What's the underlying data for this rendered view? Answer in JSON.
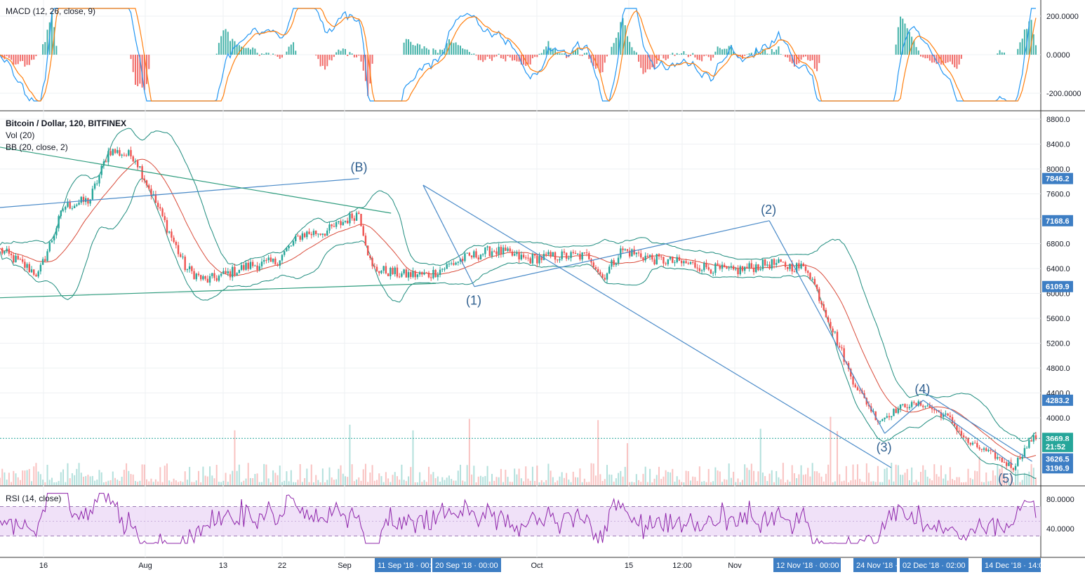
{
  "chart_data": [
    {
      "type": "line",
      "title": "Bitcoin / Dollar, 120, BITFINEX",
      "indicators": [
        "Vol (20)",
        "BB (20, close, 2)"
      ],
      "ylim": [
        3000,
        8900
      ],
      "y_ticks": [
        8800,
        8400,
        8000,
        7600,
        7200,
        6800,
        6400,
        6000,
        5600,
        5200,
        4800,
        4400,
        4000
      ],
      "y_tick_labels": [
        "8800.0",
        "8400.0",
        "8000.0",
        "7600.0",
        "7200.0",
        "6800.0",
        "6400.0",
        "6000.0",
        "5600.0",
        "5200.0",
        "4800.0",
        "4400.0",
        "4000.0"
      ],
      "x_tick_labels": [
        "16",
        "Aug",
        "13",
        "22",
        "Sep",
        "Oct",
        "15",
        "12:00",
        "Nov"
      ],
      "x_date_tags": [
        "11 Sep '18 · 00:",
        "20 Sep '18 · 00:00",
        "12 Nov '18 · 00:00",
        "24 Nov '18 ·",
        "02 Dec '18 · 02:00",
        "14 Dec '18 · 14:0"
      ],
      "price_tags": [
        {
          "label": "7846.2",
          "value": 7846.2,
          "color": "#3d7ec4"
        },
        {
          "label": "7168.6",
          "value": 7168.6,
          "color": "#3d7ec4"
        },
        {
          "label": "6109.9",
          "value": 6109.9,
          "color": "#3d7ec4"
        },
        {
          "label": "4283.2",
          "value": 4283.2,
          "color": "#3d7ec4"
        },
        {
          "label": "3669.8",
          "value": 3669.8,
          "color": "#26a69a"
        },
        {
          "label": "21:52",
          "value": 3540,
          "color": "#26a69a"
        },
        {
          "label": "3626.5",
          "value": 3340,
          "color": "#3d7ec4"
        },
        {
          "label": "3196.9",
          "value": 3196.9,
          "color": "#3d7ec4"
        }
      ],
      "wave_labels": [
        {
          "label": "(B)",
          "x": "2018-09-04",
          "y": 7846.2
        },
        {
          "label": "(1)",
          "x": "2018-09-22",
          "y": 6109.9
        },
        {
          "label": "(2)",
          "x": "2018-11-07",
          "y": 7168.6
        },
        {
          "label": "(3)",
          "x": "2018-11-25",
          "y": 3750
        },
        {
          "label": "(4)",
          "x": "2018-12-01",
          "y": 4283.2
        },
        {
          "label": "(5)",
          "x": "2018-12-14",
          "y": 3250
        }
      ],
      "price_series": {
        "name": "",
        "x": [
          "2018-07-10",
          "2018-07-16",
          "2018-07-20",
          "2018-07-24",
          "2018-07-27",
          "2018-07-31",
          "2018-08-04",
          "2018-08-08",
          "2018-08-11",
          "2018-08-14",
          "2018-08-18",
          "2018-08-22",
          "2018-08-26",
          "2018-08-30",
          "2018-09-04",
          "2018-09-06",
          "2018-09-11",
          "2018-09-15",
          "2018-09-20",
          "2018-09-25",
          "2018-09-30",
          "2018-10-05",
          "2018-10-10",
          "2018-10-12",
          "2018-10-15",
          "2018-10-20",
          "2018-10-25",
          "2018-11-01",
          "2018-11-07",
          "2018-11-13",
          "2018-11-16",
          "2018-11-20",
          "2018-11-24",
          "2018-11-28",
          "2018-12-01",
          "2018-12-05",
          "2018-12-08",
          "2018-12-12",
          "2018-12-15",
          "2018-12-18"
        ],
        "y": [
          6700,
          6300,
          7400,
          7500,
          8300,
          8200,
          7300,
          6400,
          6200,
          6300,
          6450,
          6500,
          6950,
          7000,
          7300,
          6400,
          6300,
          6300,
          6550,
          6700,
          6550,
          6600,
          6600,
          6250,
          6700,
          6550,
          6480,
          6350,
          6480,
          6400,
          5650,
          4600,
          3950,
          4200,
          4220,
          4000,
          3600,
          3400,
          3200,
          3669.8
        ]
      },
      "volume_note": "Vol (20)"
    },
    {
      "type": "line",
      "title": "MACD (12, 26, close, 9)",
      "ylim": [
        -290,
        290
      ],
      "y_ticks": [
        200,
        0,
        -200
      ],
      "y_tick_labels": [
        "200.0000",
        "0.0000",
        "-200.0000"
      ]
    },
    {
      "type": "line",
      "title": "RSI (14, close)",
      "ylim": [
        15,
        95
      ],
      "y_ticks": [
        80,
        40
      ],
      "y_tick_labels": [
        "80.0000",
        "40.0000"
      ],
      "bands": [
        70,
        30
      ]
    }
  ],
  "colors": {
    "up": "#26a69a",
    "down": "#ef5350",
    "bollinger": "#1e8c7e",
    "trendline_green": "#2e9c7d",
    "trendline_blue": "#4a8ac8",
    "macd_line": "#2196f3",
    "signal_line": "#ff7f0e",
    "rsi_line": "#8e24aa",
    "rsi_band": "#e9d4f5",
    "tag_blue": "#3d7ec4",
    "tag_green": "#26a69a"
  }
}
